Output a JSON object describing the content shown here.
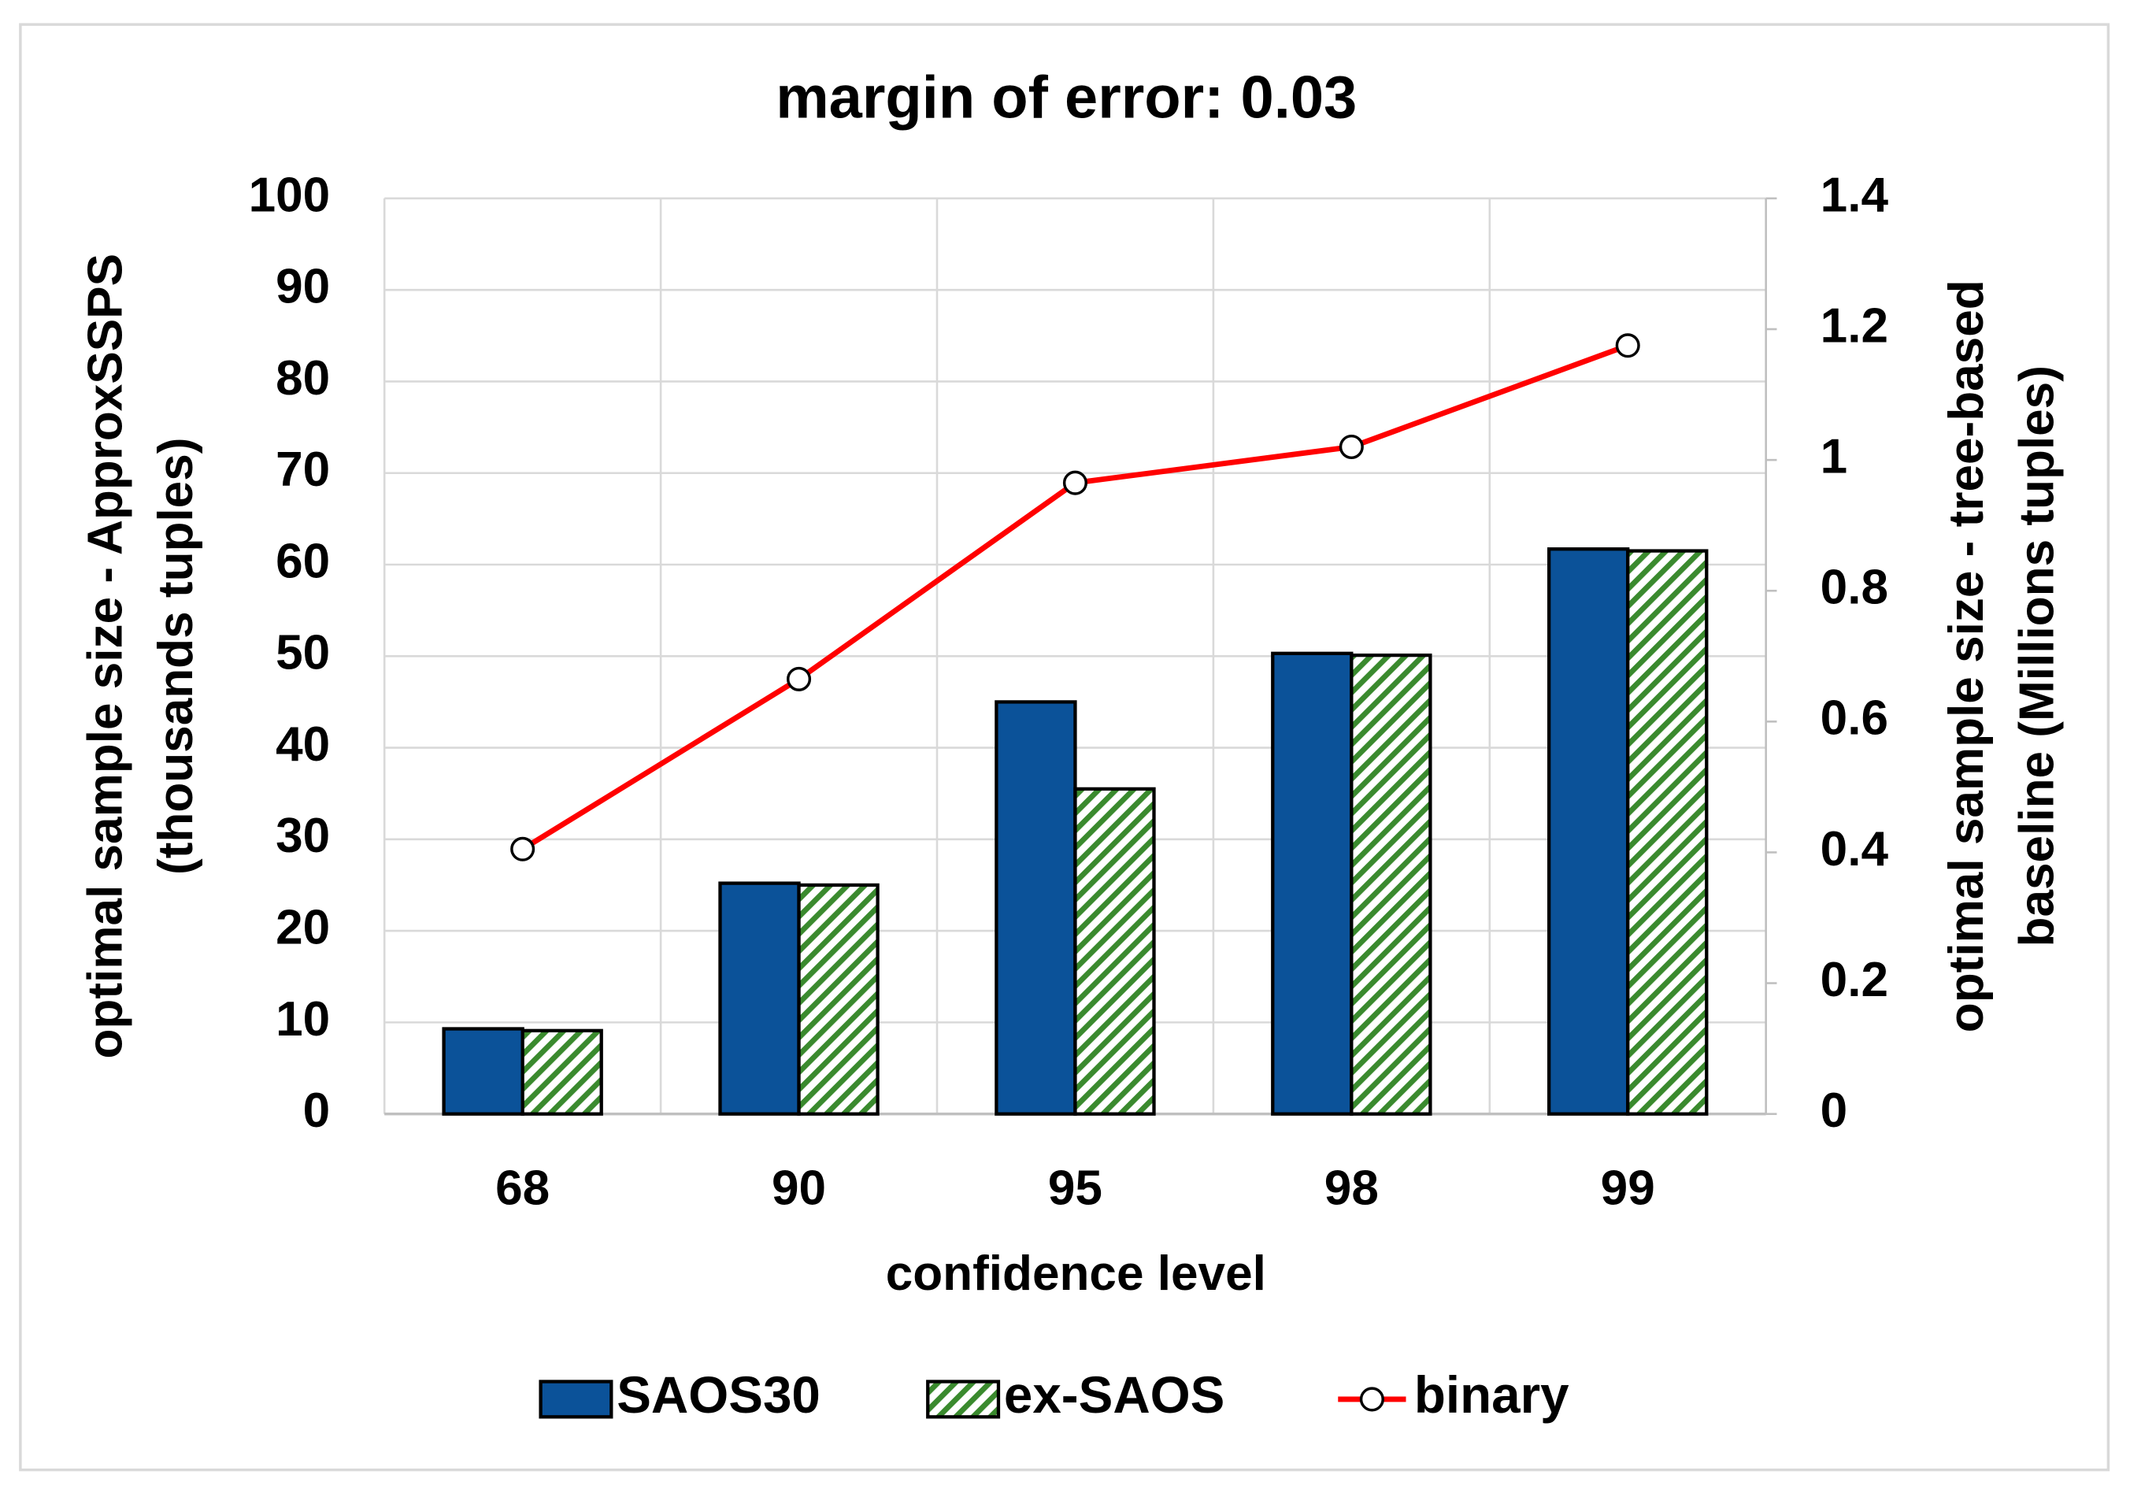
{
  "chart_data": {
    "type": "bar",
    "title": "margin of error: 0.03",
    "x_label": "confidence level",
    "y_label": [
      "optimal sample size - ApproxSSPS",
      "(thousands tuples)"
    ],
    "y2_label": [
      "optimal sample size - tree-based",
      "baseline (Millions tuples)"
    ],
    "y2_label_color": "#ff0000",
    "categories": [
      "68",
      "90",
      "95",
      "98",
      "99"
    ],
    "series": [
      {
        "name": "SAOS30",
        "type": "bar",
        "color": "#0b5299",
        "values": [
          9.3,
          25.2,
          45,
          50.3,
          61.7
        ]
      },
      {
        "name": "ex-SAOS",
        "type": "bar",
        "color": "#3a8a2e",
        "hatch": true,
        "values": [
          9.1,
          25,
          35.5,
          50.1,
          61.5
        ]
      },
      {
        "name": "binary",
        "type": "line",
        "axis": "y2",
        "color": "#ff0000",
        "values": [
          0.405,
          0.665,
          0.965,
          1.02,
          1.175
        ]
      }
    ],
    "ylim": [
      0,
      100
    ],
    "yticks": [
      0,
      10,
      20,
      30,
      40,
      50,
      60,
      70,
      80,
      90,
      100
    ],
    "y2lim": [
      0,
      1.4
    ],
    "y2ticks": [
      0,
      0.2,
      0.4,
      0.6,
      0.8,
      1,
      1.2,
      1.4
    ],
    "grid": true,
    "legend": "bottom"
  }
}
